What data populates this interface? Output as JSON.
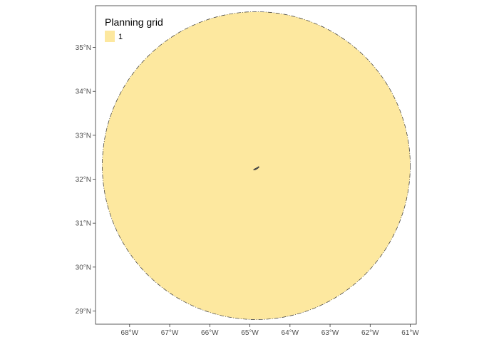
{
  "legend": {
    "title": "Planning grid",
    "items": [
      {
        "label": "1",
        "color": "#FDE89F"
      }
    ]
  },
  "colors": {
    "fill": "#FDE89F",
    "outline": "#333333",
    "island": "#4d4d4d",
    "panel_border": "#333333"
  },
  "x_axis": {
    "ticks": [
      -68,
      -67,
      -66,
      -65,
      -64,
      -63,
      -62,
      -61
    ],
    "labels": [
      "68°W",
      "67°W",
      "66°W",
      "65°W",
      "64°W",
      "63°W",
      "62°W",
      "61°W"
    ]
  },
  "y_axis": {
    "ticks": [
      29,
      30,
      31,
      32,
      33,
      34,
      35
    ],
    "labels": [
      "29°N",
      "30°N",
      "31°N",
      "32°N",
      "33°N",
      "34°N",
      "35°N"
    ]
  },
  "chart_data": {
    "type": "map",
    "xlim": [
      -68.85,
      -60.85
    ],
    "ylim": [
      28.7,
      35.95
    ],
    "grid": false,
    "legend_position": "top-left",
    "features": [
      {
        "name": "planning-unit",
        "value": "1",
        "center_lon": -64.83,
        "center_lat": 32.2,
        "radius_deg": 3.5,
        "color": "#FDE89F"
      },
      {
        "name": "island",
        "center_lon": -64.78,
        "center_lat": 32.3,
        "color": "#4d4d4d"
      }
    ]
  }
}
